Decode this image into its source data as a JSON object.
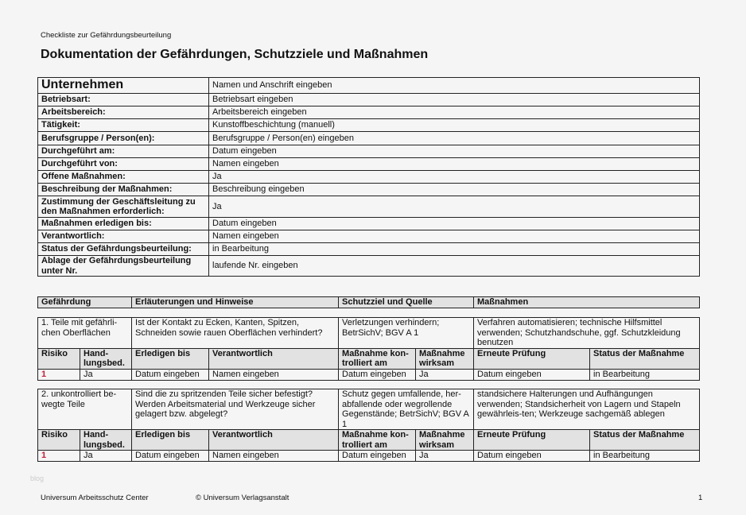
{
  "header": {
    "subtitle": "Checkliste zur Gefährdungsbeurteilung",
    "title": "Dokumentation der Gefährdungen, Schutzziele und Maßnahmen"
  },
  "info": {
    "company_label": "Unternehmen",
    "company_value": "Namen und Anschrift eingeben",
    "rows": [
      {
        "label": "Betriebsart:",
        "value": "Betriebsart eingeben"
      },
      {
        "label": "Arbeitsbereich:",
        "value": "Arbeitsbereich eingeben"
      },
      {
        "label": "Tätigkeit:",
        "value": "Kunstoffbeschichtung (manuell)"
      },
      {
        "label": "Berufsgruppe / Person(en):",
        "value": "Berufsgruppe / Person(en) eingeben"
      },
      {
        "label": "Durchgeführt am:",
        "value": "Datum eingeben"
      },
      {
        "label": "Durchgeführt von:",
        "value": "Namen eingeben"
      },
      {
        "label": "Offene Maßnahmen:",
        "value": "Ja"
      },
      {
        "label": "Beschreibung der Maßnahmen:",
        "value": "Beschreibung eingeben"
      },
      {
        "label": "Zustimmung der Geschäftsleitung zu den Maßnahmen erforderlich:",
        "value": "Ja"
      },
      {
        "label": "Maßnahmen erledigen bis:",
        "value": "Datum eingeben"
      },
      {
        "label": "Verantwortlich:",
        "value": "Namen eingeben"
      },
      {
        "label": "Status der Gefährdungsbeurteilung:",
        "value": "in Bearbeitung"
      },
      {
        "label": "Ablage der Gefährdungsbeurteilung unter Nr.",
        "value": "laufende Nr. eingeben"
      }
    ]
  },
  "columns": {
    "gefaehrdung": "Gefährdung",
    "erlaeuterungen": "Erläuterungen und Hinweise",
    "schutzziel": "Schutzziel und Quelle",
    "massnahmen": "Maßnahmen"
  },
  "sub_headers": [
    "Risiko",
    "Hand-lungsbed.",
    "Erledigen bis",
    "Verantwortlich",
    "Maßnahme kon-trolliert am",
    "Maßnahme wirksam",
    "Erneute Prüfung",
    "Status der Maßnahme"
  ],
  "hazards": [
    {
      "gefaehrdung": "1. Teile mit gefährli-chen Oberflächen",
      "erlaeuterungen": "Ist der Kontakt zu Ecken, Kanten, Spitzen, Schneiden sowie rauen Oberflächen verhindert?",
      "schutzziel": "Verletzungen verhindern; BetrSichV; BGV A 1",
      "massnahmen": "Verfahren automatisieren; technische Hilfsmittel verwenden; Schutzhandschuhe, ggf. Schutzkleidung benutzen",
      "values": [
        "1",
        "Ja",
        "Datum eingeben",
        "Namen eingeben",
        "Datum eingeben",
        "Ja",
        "Datum eingeben",
        "in Bearbeitung"
      ]
    },
    {
      "gefaehrdung": "2. unkontrolliert be-wegte Teile",
      "erlaeuterungen": "Sind die zu spritzenden Teile sicher befestigt? Werden Arbeitsmaterial und Werkzeuge sicher gelagert bzw. abgelegt?",
      "schutzziel": "Schutz gegen umfallende, her-abfallende oder wegrollende Gegenstände; BetrSichV; BGV A 1",
      "massnahmen": "standsichere Halterungen und Aufhängungen verwenden; Standsicherheit von Lagern und Stapeln gewährleis-ten; Werkzeuge sachgemäß ablegen",
      "values": [
        "1",
        "Ja",
        "Datum eingeben",
        "Namen eingeben",
        "Datum eingeben",
        "Ja",
        "Datum eingeben",
        "in Bearbeitung"
      ]
    }
  ],
  "footer": {
    "left": "Universum Arbeitsschutz Center",
    "center": "© Universum Verlagsanstalt",
    "page": "1"
  },
  "watermark": "blog",
  "colors": {
    "header_fill": "#e2e2e2",
    "risk": "#c0203a"
  }
}
